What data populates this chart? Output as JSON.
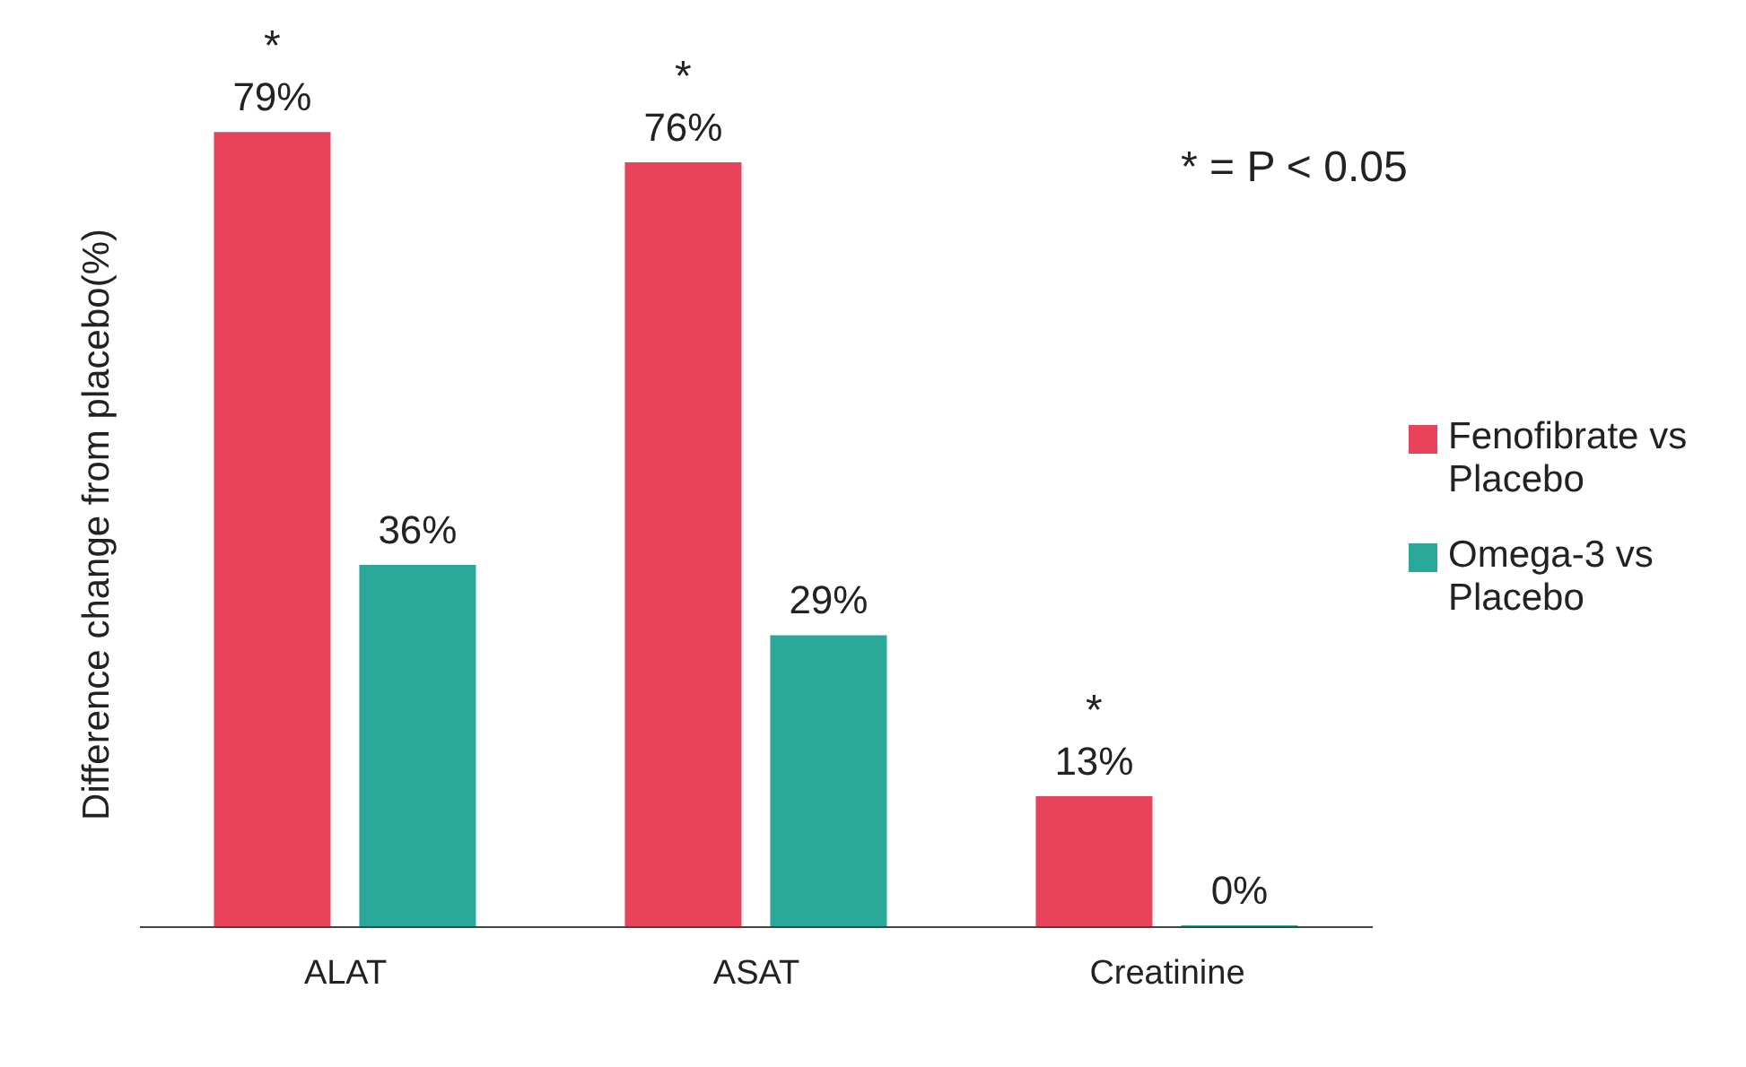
{
  "chart_data": {
    "type": "bar",
    "ylabel": "Difference change from placebo(%)",
    "categories": [
      "ALAT",
      "ASAT",
      "Creatinine"
    ],
    "series": [
      {
        "name": "Fenofibrate vs Placebo",
        "color": "#e8435a",
        "values": [
          79,
          76,
          13
        ],
        "value_labels": [
          "79%",
          "76%",
          "13%"
        ]
      },
      {
        "name": "Omega-3 vs Placebo",
        "color": "#2aa89a",
        "values": [
          36,
          29,
          0
        ],
        "value_labels": [
          "36%",
          "29%",
          "0%"
        ]
      }
    ],
    "annotations": [
      "* = P < 0.05",
      "*",
      "*",
      "*"
    ],
    "legend": "right",
    "grid": false
  }
}
